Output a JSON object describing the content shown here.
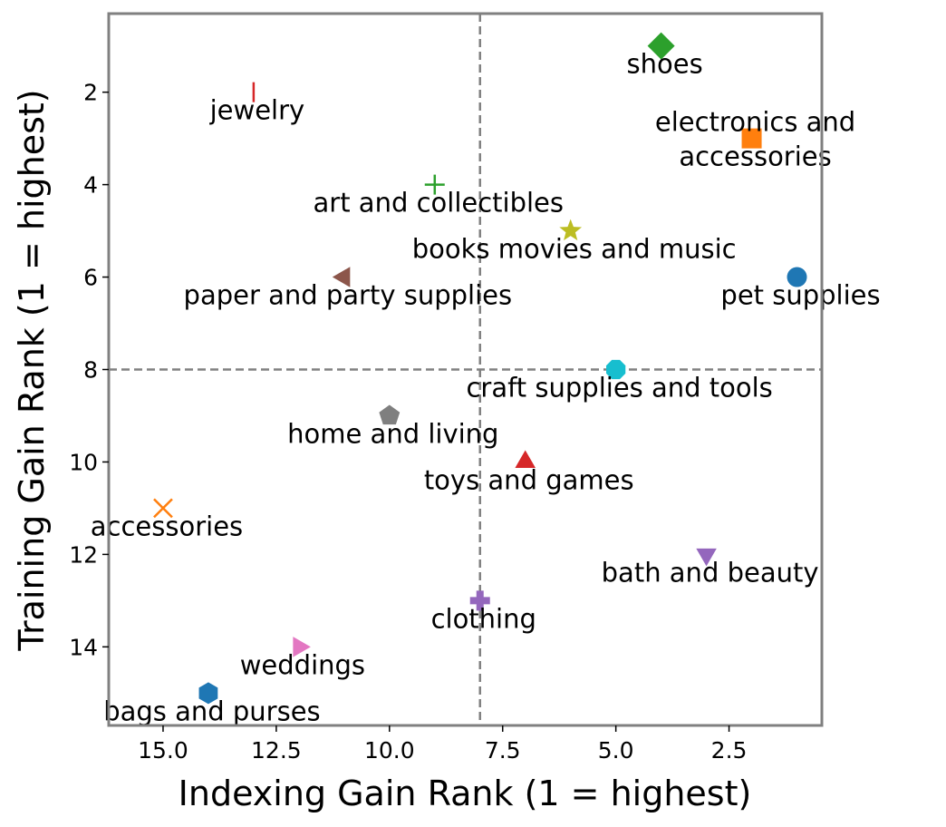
{
  "chart_data": {
    "type": "scatter",
    "title": "",
    "xlabel": "Indexing Gain Rank (1 = highest)",
    "ylabel": "Training Gain Rank (1 = highest)",
    "xlim": [
      16.2,
      0.45
    ],
    "ylim": [
      0.3,
      15.7
    ],
    "x_inverted": true,
    "y_inverted": true,
    "xticks": [
      15.0,
      12.5,
      10.0,
      7.5,
      5.0,
      2.5
    ],
    "xtick_labels": [
      "15.0",
      "12.5",
      "10.0",
      "7.5",
      "5.0",
      "2.5"
    ],
    "yticks": [
      2,
      4,
      6,
      8,
      10,
      12,
      14
    ],
    "ytick_labels": [
      "2",
      "4",
      "6",
      "8",
      "10",
      "12",
      "14"
    ],
    "grid": false,
    "reference_lines": {
      "x": 8,
      "y": 8,
      "style": "dashed",
      "color": "#808080"
    },
    "points": [
      {
        "label": "shoes",
        "x": 4,
        "y": 1,
        "marker": "diamond",
        "color": "#2ca02c"
      },
      {
        "label": "jewelry",
        "x": 13,
        "y": 2,
        "marker": "vline",
        "color": "#d62728"
      },
      {
        "label": "electronics and\naccessories",
        "x": 2,
        "y": 3,
        "marker": "square",
        "color": "#ff7f0e"
      },
      {
        "label": "art and collectibles",
        "x": 9,
        "y": 4,
        "marker": "plus",
        "color": "#2ca02c"
      },
      {
        "label": "books movies and music",
        "x": 6,
        "y": 5,
        "marker": "star",
        "color": "#bcbd22"
      },
      {
        "label": "pet supplies",
        "x": 1,
        "y": 6,
        "marker": "circle",
        "color": "#1f77b4"
      },
      {
        "label": "paper and party supplies",
        "x": 11,
        "y": 6,
        "marker": "triangle-left",
        "color": "#8c564b"
      },
      {
        "label": "craft supplies and tools",
        "x": 5,
        "y": 8,
        "marker": "octagon",
        "color": "#17becf"
      },
      {
        "label": "home and living",
        "x": 10,
        "y": 9,
        "marker": "pentagon",
        "color": "#7f7f7f"
      },
      {
        "label": "toys and games",
        "x": 7,
        "y": 10,
        "marker": "triangle-up",
        "color": "#d62728"
      },
      {
        "label": "accessories",
        "x": 15,
        "y": 11,
        "marker": "x",
        "color": "#ff7f0e"
      },
      {
        "label": "bath and beauty",
        "x": 3,
        "y": 12,
        "marker": "triangle-down",
        "color": "#9467bd"
      },
      {
        "label": "clothing",
        "x": 8,
        "y": 13,
        "marker": "plus-filled",
        "color": "#9467bd"
      },
      {
        "label": "weddings",
        "x": 12,
        "y": 14,
        "marker": "triangle-right",
        "color": "#e377c2"
      },
      {
        "label": "bags and purses",
        "x": 14,
        "y": 15,
        "marker": "hexagon",
        "color": "#1f77b4"
      }
    ]
  },
  "colors": {
    "frame": "#808080",
    "reference_line": "#808080",
    "text": "#000000"
  }
}
